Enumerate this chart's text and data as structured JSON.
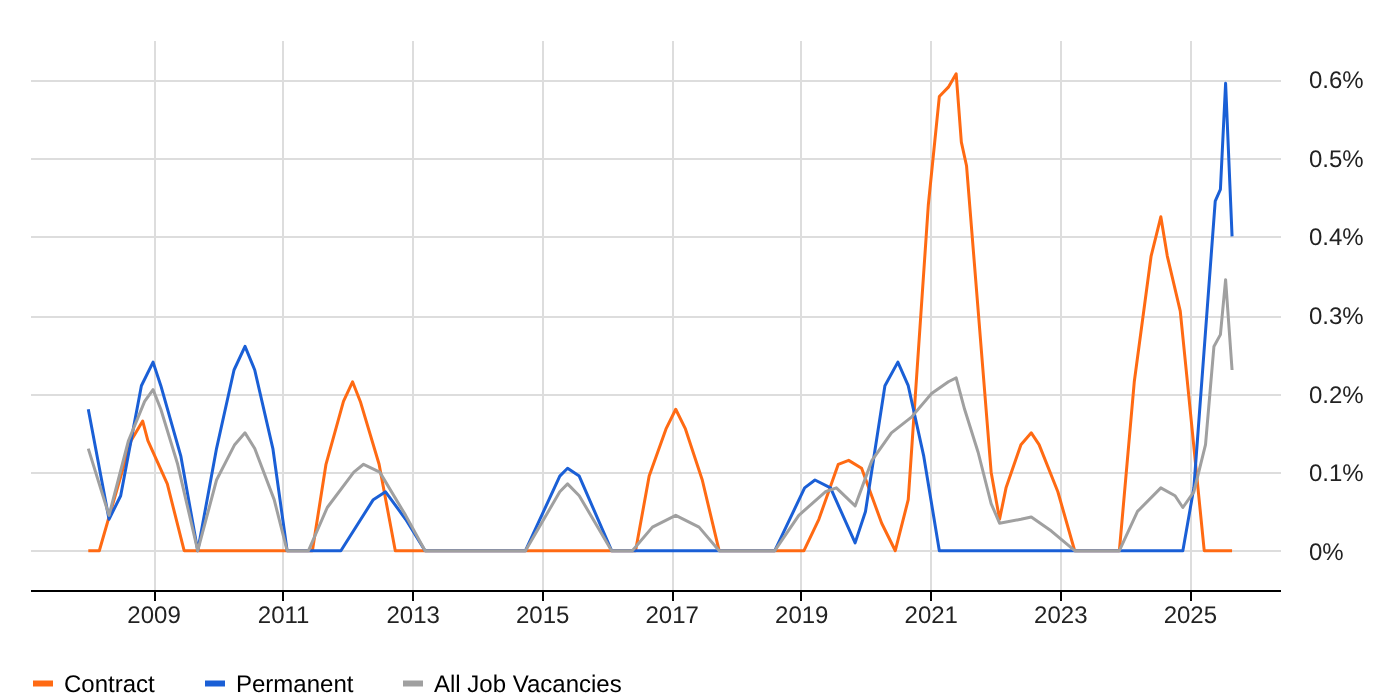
{
  "chart_data": {
    "type": "line",
    "xlim": [
      2007.1,
      2026.4
    ],
    "xticks": [
      2009,
      2011,
      2013,
      2015,
      2017,
      2019,
      2021,
      2023,
      2025
    ],
    "ylim": [
      -0.05,
      0.65
    ],
    "yticks": [
      {
        "value": 0,
        "label": "0%"
      },
      {
        "value": 0.1,
        "label": "0.1%"
      },
      {
        "value": 0.2,
        "label": "0.2%"
      },
      {
        "value": 0.3,
        "label": "0.3%"
      },
      {
        "value": 0.4,
        "label": "0.4%"
      },
      {
        "value": 0.5,
        "label": "0.5%"
      },
      {
        "value": 0.6,
        "label": "0.6%"
      }
    ],
    "grid": true,
    "legend": "bottom",
    "series": [
      {
        "name": "Contract",
        "color": "#ff6a13",
        "x": [
          2008.0,
          2008.17,
          2008.66,
          2008.84,
          2008.92,
          2009.22,
          2009.48,
          2011.46,
          2011.67,
          2011.94,
          2012.08,
          2012.2,
          2012.49,
          2012.74,
          2016.45,
          2016.66,
          2016.92,
          2017.07,
          2017.22,
          2017.48,
          2017.74,
          2019.05,
          2019.28,
          2019.58,
          2019.74,
          2019.94,
          2020.25,
          2020.46,
          2020.66,
          2020.97,
          2021.14,
          2021.28,
          2021.4,
          2021.48,
          2021.56,
          2021.94,
          2022.07,
          2022.17,
          2022.4,
          2022.56,
          2022.68,
          2022.97,
          2023.23,
          2023.92,
          2024.15,
          2024.41,
          2024.56,
          2024.66,
          2024.86,
          2024.97,
          2025.23,
          2025.66
        ],
        "values": [
          0,
          0,
          0.14,
          0.165,
          0.14,
          0.085,
          0,
          0,
          0.11,
          0.19,
          0.215,
          0.19,
          0.11,
          0,
          0,
          0.095,
          0.155,
          0.18,
          0.155,
          0.09,
          0,
          0,
          0.04,
          0.11,
          0.115,
          0.105,
          0.035,
          0,
          0.065,
          0.44,
          0.578,
          0.59,
          0.607,
          0.52,
          0.49,
          0.1,
          0.04,
          0.08,
          0.135,
          0.15,
          0.135,
          0.075,
          0,
          0,
          0.215,
          0.375,
          0.425,
          0.375,
          0.305,
          0.215,
          0,
          0
        ]
      },
      {
        "name": "Permanent",
        "color": "#1a5fd6",
        "x": [
          2008.0,
          2008.32,
          2008.5,
          2008.82,
          2009.0,
          2009.12,
          2009.43,
          2009.69,
          2009.98,
          2010.25,
          2010.42,
          2010.57,
          2010.85,
          2011.07,
          2011.9,
          2012.4,
          2012.59,
          2012.9,
          2013.2,
          2014.75,
          2015.28,
          2015.4,
          2015.58,
          2016.08,
          2018.6,
          2019.06,
          2019.22,
          2019.46,
          2019.84,
          2020.0,
          2020.3,
          2020.5,
          2020.66,
          2020.9,
          2021.14,
          2024.9,
          2025.07,
          2025.4,
          2025.48,
          2025.56,
          2025.66
        ],
        "values": [
          0.18,
          0.04,
          0.07,
          0.21,
          0.24,
          0.21,
          0.12,
          0,
          0.13,
          0.23,
          0.26,
          0.23,
          0.13,
          0,
          0,
          0.065,
          0.075,
          0.04,
          0,
          0,
          0.095,
          0.105,
          0.095,
          0,
          0,
          0.08,
          0.09,
          0.08,
          0.01,
          0.05,
          0.21,
          0.24,
          0.21,
          0.12,
          0,
          0,
          0.08,
          0.445,
          0.46,
          0.595,
          0.4
        ]
      },
      {
        "name": "All Job Vacancies",
        "color": "#a0a0a0",
        "x": [
          2008.0,
          2008.32,
          2008.62,
          2008.87,
          2009.0,
          2009.12,
          2009.38,
          2009.69,
          2009.98,
          2010.26,
          2010.42,
          2010.57,
          2010.87,
          2011.07,
          2011.4,
          2011.69,
          2012.1,
          2012.25,
          2012.5,
          2012.9,
          2013.2,
          2014.75,
          2015.28,
          2015.4,
          2015.58,
          2016.08,
          2016.4,
          2016.71,
          2017.07,
          2017.43,
          2017.74,
          2018.6,
          2018.97,
          2019.38,
          2019.55,
          2019.84,
          2020.1,
          2020.4,
          2020.71,
          2021.02,
          2021.28,
          2021.4,
          2021.53,
          2021.74,
          2021.94,
          2022.07,
          2022.4,
          2022.56,
          2022.87,
          2023.23,
          2023.92,
          2024.2,
          2024.56,
          2024.78,
          2024.9,
          2025.07,
          2025.25,
          2025.38,
          2025.48,
          2025.56,
          2025.66
        ],
        "values": [
          0.13,
          0.045,
          0.14,
          0.19,
          0.205,
          0.18,
          0.11,
          0,
          0.09,
          0.135,
          0.15,
          0.13,
          0.065,
          0,
          0,
          0.055,
          0.1,
          0.11,
          0.1,
          0.045,
          0,
          0,
          0.075,
          0.085,
          0.07,
          0,
          0,
          0.03,
          0.045,
          0.03,
          0,
          0,
          0.045,
          0.075,
          0.08,
          0.057,
          0.115,
          0.15,
          0.17,
          0.2,
          0.215,
          0.22,
          0.18,
          0.125,
          0.06,
          0.035,
          0.04,
          0.043,
          0.025,
          0,
          0,
          0.05,
          0.08,
          0.07,
          0.055,
          0.075,
          0.135,
          0.26,
          0.275,
          0.345,
          0.23
        ]
      }
    ]
  }
}
